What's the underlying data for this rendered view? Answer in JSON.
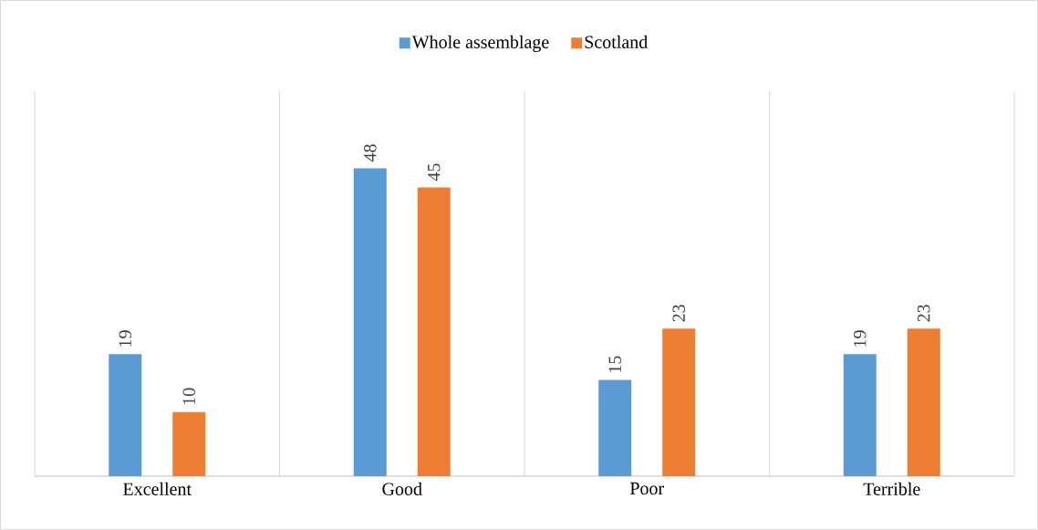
{
  "chart_data": {
    "type": "bar",
    "categories": [
      "Excellent",
      "Good",
      "Poor",
      "Terrible"
    ],
    "series": [
      {
        "name": "Whole assemblage",
        "color": "#5b9bd5",
        "values": [
          19,
          48,
          15,
          19
        ]
      },
      {
        "name": "Scotland",
        "color": "#ed7d31",
        "values": [
          10,
          45,
          23,
          23
        ]
      }
    ],
    "tick_labels": "x",
    "data_labels": true,
    "legend": "top",
    "grid": "x"
  }
}
